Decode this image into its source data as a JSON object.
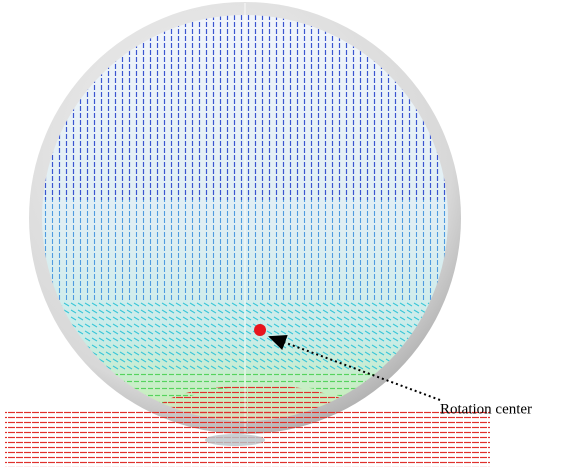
{
  "annotations": [
    {
      "label": "Rotation center"
    }
  ]
}
